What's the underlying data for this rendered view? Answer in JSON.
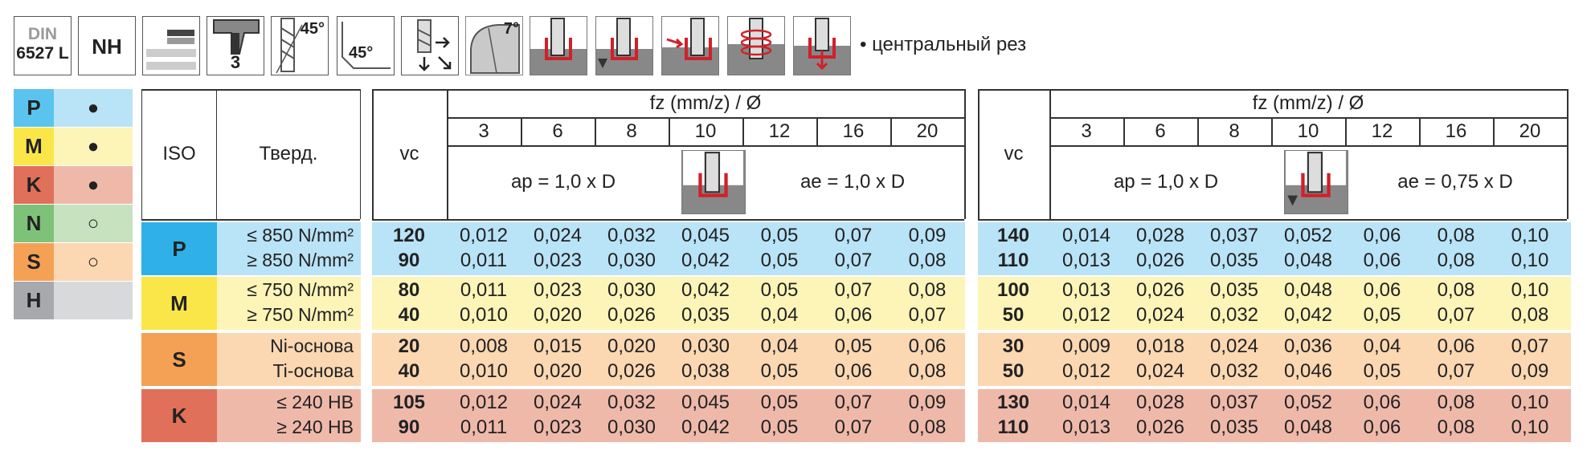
{
  "icons": {
    "din_top": "DIN",
    "din_bottom": "6527 L",
    "nh": "NH",
    "teeth": "3",
    "helix": "45°",
    "chamfer": "45°",
    "relief": "7°",
    "note": "• центральный рез"
  },
  "materials": [
    {
      "letter": "P",
      "symbol": "●",
      "color": "#5bc4ee",
      "light": "#b9e3f7"
    },
    {
      "letter": "M",
      "symbol": "●",
      "color": "#fbe64a",
      "light": "#fdf4b8"
    },
    {
      "letter": "K",
      "symbol": "●",
      "color": "#e0705a",
      "light": "#efb9aa"
    },
    {
      "letter": "N",
      "symbol": "○",
      "color": "#7ec27a",
      "light": "#c6e2bf"
    },
    {
      "letter": "S",
      "symbol": "○",
      "color": "#f5a155",
      "light": "#fbd7b2"
    },
    {
      "letter": "H",
      "symbol": "",
      "color": "#a8a9ad",
      "light": "#d8d9db"
    }
  ],
  "header": {
    "iso": "ISO",
    "hardness": "Тверд.",
    "vc": "vc",
    "fz": "fz (mm/z) / Ø",
    "diameters": [
      "3",
      "6",
      "8",
      "10",
      "12",
      "16",
      "20"
    ],
    "left_ap": "ap = 1,0 x D",
    "left_ae": "ae = 1,0 x D",
    "right_ap": "ap = 1,0 x D",
    "right_ae": "ae = 0,75 x D"
  },
  "groups": [
    {
      "iso": "P",
      "bg": "#b9e3f7",
      "accent": "#2fb0e8",
      "rows": [
        {
          "hard": "≤ 850 N/mm²",
          "vc_l": "120",
          "l": [
            "0,012",
            "0,024",
            "0,032",
            "0,045",
            "0,05",
            "0,07",
            "0,09"
          ],
          "vc_r": "140",
          "r": [
            "0,014",
            "0,028",
            "0,037",
            "0,052",
            "0,06",
            "0,08",
            "0,10"
          ]
        },
        {
          "hard": "≥ 850 N/mm²",
          "vc_l": "90",
          "l": [
            "0,011",
            "0,023",
            "0,030",
            "0,042",
            "0,05",
            "0,07",
            "0,08"
          ],
          "vc_r": "110",
          "r": [
            "0,013",
            "0,026",
            "0,035",
            "0,048",
            "0,06",
            "0,08",
            "0,10"
          ]
        }
      ]
    },
    {
      "iso": "M",
      "bg": "#fdf4b8",
      "accent": "#fbe64a",
      "rows": [
        {
          "hard": "≤ 750 N/mm²",
          "vc_l": "80",
          "l": [
            "0,011",
            "0,023",
            "0,030",
            "0,042",
            "0,05",
            "0,07",
            "0,08"
          ],
          "vc_r": "100",
          "r": [
            "0,013",
            "0,026",
            "0,035",
            "0,048",
            "0,06",
            "0,08",
            "0,10"
          ]
        },
        {
          "hard": "≥ 750 N/mm²",
          "vc_l": "40",
          "l": [
            "0,010",
            "0,020",
            "0,026",
            "0,035",
            "0,04",
            "0,06",
            "0,07"
          ],
          "vc_r": "50",
          "r": [
            "0,012",
            "0,024",
            "0,032",
            "0,042",
            "0,05",
            "0,07",
            "0,08"
          ]
        }
      ]
    },
    {
      "iso": "S",
      "bg": "#fbd7b2",
      "accent": "#f5a155",
      "rows": [
        {
          "hard": "Ni-основа",
          "vc_l": "20",
          "l": [
            "0,008",
            "0,015",
            "0,020",
            "0,030",
            "0,04",
            "0,05",
            "0,06"
          ],
          "vc_r": "30",
          "r": [
            "0,009",
            "0,018",
            "0,024",
            "0,036",
            "0,04",
            "0,06",
            "0,07"
          ]
        },
        {
          "hard": "Ti-основа",
          "vc_l": "40",
          "l": [
            "0,010",
            "0,020",
            "0,026",
            "0,038",
            "0,05",
            "0,06",
            "0,08"
          ],
          "vc_r": "50",
          "r": [
            "0,012",
            "0,024",
            "0,032",
            "0,046",
            "0,05",
            "0,07",
            "0,09"
          ]
        }
      ]
    },
    {
      "iso": "K",
      "bg": "#efb9aa",
      "accent": "#e0705a",
      "rows": [
        {
          "hard": "≤ 240 HB",
          "vc_l": "105",
          "l": [
            "0,012",
            "0,024",
            "0,032",
            "0,045",
            "0,05",
            "0,07",
            "0,09"
          ],
          "vc_r": "130",
          "r": [
            "0,014",
            "0,028",
            "0,037",
            "0,052",
            "0,06",
            "0,08",
            "0,10"
          ]
        },
        {
          "hard": "≥ 240 HB",
          "vc_l": "90",
          "l": [
            "0,011",
            "0,023",
            "0,030",
            "0,042",
            "0,05",
            "0,07",
            "0,08"
          ],
          "vc_r": "110",
          "r": [
            "0,013",
            "0,026",
            "0,035",
            "0,048",
            "0,06",
            "0,08",
            "0,10"
          ]
        }
      ]
    }
  ]
}
